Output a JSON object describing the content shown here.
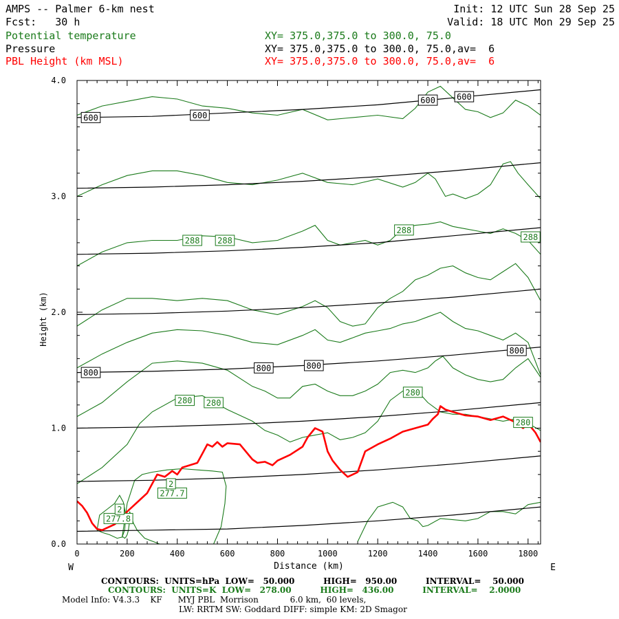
{
  "header": {
    "title": "AMPS -- Palmer 6-km nest",
    "fcst": "Fcst:   30 h",
    "init": "Init: 12 UTC Sun 28 Sep 25",
    "valid": "Valid: 18 UTC Mon 29 Sep 25",
    "var1_name": "Potential temperature",
    "var1_xy": "XY= 375.0,375.0 to 300.0, 75.0",
    "var2_name": "Pressure",
    "var2_xy": "XY= 375.0,375.0 to 300.0, 75.0,av=  6",
    "var3_name": "PBL Height (km MSL)",
    "var3_xy": "XY= 375.0,375.0 to 300.0, 75.0,av=  6"
  },
  "footer": {
    "line1": "CONTOURS:  UNITS=hPa  LOW=   50.000          HIGH=   950.00          INTERVAL=    50.000",
    "line2": "CONTOURS:  UNITS=K  LOW=   278.00          HIGH=   436.00          INTERVAL=    2.0000",
    "line3": "Model Info: V4.3.3    KF      MYJ PBL  Morrison            6.0 km,  60 levels,",
    "line4": "LW: RRTM SW: Goddard DIFF: simple KM: 2D Smagor"
  },
  "colors": {
    "theta": "#1a7a1a",
    "pressure": "#000000",
    "pbl": "#ff0000"
  },
  "chart_data": {
    "type": "line",
    "xlabel": "Distance (km)",
    "ylabel": "Height (km)",
    "xlim": [
      0,
      1850
    ],
    "ylim": [
      0,
      4.0
    ],
    "x_ticks": [
      0,
      200,
      400,
      600,
      800,
      1000,
      1200,
      1400,
      1600,
      1800
    ],
    "y_ticks": [
      0.0,
      1.0,
      2.0,
      3.0,
      4.0
    ],
    "y_tick_labels": [
      "0.0",
      "1.0",
      "2.0",
      "3.0",
      "4.0"
    ],
    "x_end_labels": [
      "W",
      "E"
    ],
    "pbl_height": {
      "x": [
        0,
        20,
        40,
        60,
        80,
        100,
        120,
        150,
        180,
        200,
        220,
        250,
        280,
        300,
        320,
        350,
        380,
        400,
        420,
        450,
        480,
        500,
        520,
        540,
        560,
        580,
        600,
        650,
        700,
        720,
        750,
        780,
        800,
        850,
        900,
        920,
        950,
        980,
        1000,
        1020,
        1050,
        1080,
        1100,
        1120,
        1150,
        1200,
        1250,
        1300,
        1350,
        1400,
        1420,
        1440,
        1450,
        1470,
        1500,
        1550,
        1600,
        1650,
        1700,
        1750,
        1780,
        1800,
        1830,
        1850
      ],
      "y": [
        0.37,
        0.33,
        0.27,
        0.18,
        0.13,
        0.12,
        0.14,
        0.17,
        0.22,
        0.28,
        0.32,
        0.38,
        0.44,
        0.52,
        0.6,
        0.58,
        0.63,
        0.6,
        0.66,
        0.68,
        0.7,
        0.78,
        0.86,
        0.84,
        0.88,
        0.84,
        0.87,
        0.86,
        0.73,
        0.7,
        0.71,
        0.68,
        0.72,
        0.77,
        0.84,
        0.92,
        1.0,
        0.97,
        0.8,
        0.72,
        0.64,
        0.58,
        0.6,
        0.62,
        0.8,
        0.86,
        0.91,
        0.97,
        1.0,
        1.03,
        1.08,
        1.12,
        1.19,
        1.16,
        1.14,
        1.11,
        1.1,
        1.07,
        1.1,
        1.05,
        1.0,
        1.04,
        0.96,
        0.88
      ]
    },
    "pressure_contours": [
      {
        "level": "600",
        "x": [
          0,
          300,
          600,
          900,
          1200,
          1500,
          1850
        ],
        "y": [
          3.68,
          3.69,
          3.72,
          3.75,
          3.79,
          3.85,
          3.92
        ]
      },
      {
        "level": "",
        "x": [
          0,
          300,
          600,
          900,
          1200,
          1500,
          1850
        ],
        "y": [
          3.07,
          3.08,
          3.1,
          3.13,
          3.17,
          3.22,
          3.29
        ]
      },
      {
        "level": "",
        "x": [
          0,
          300,
          600,
          900,
          1200,
          1500,
          1850
        ],
        "y": [
          2.5,
          2.51,
          2.53,
          2.56,
          2.6,
          2.66,
          2.73
        ]
      },
      {
        "level": "",
        "x": [
          0,
          300,
          600,
          900,
          1200,
          1500,
          1850
        ],
        "y": [
          1.98,
          1.99,
          2.01,
          2.04,
          2.08,
          2.13,
          2.2
        ]
      },
      {
        "level": "800",
        "x": [
          0,
          300,
          600,
          900,
          1200,
          1500,
          1850
        ],
        "y": [
          1.48,
          1.49,
          1.51,
          1.54,
          1.58,
          1.63,
          1.7
        ]
      },
      {
        "level": "",
        "x": [
          0,
          300,
          600,
          900,
          1200,
          1500,
          1850
        ],
        "y": [
          1.0,
          1.01,
          1.03,
          1.06,
          1.1,
          1.15,
          1.22
        ]
      },
      {
        "level": "",
        "x": [
          0,
          300,
          600,
          900,
          1200,
          1500,
          1850
        ],
        "y": [
          0.54,
          0.55,
          0.57,
          0.6,
          0.64,
          0.69,
          0.76
        ]
      },
      {
        "level": "",
        "x": [
          0,
          300,
          600,
          900,
          1200,
          1500,
          1850
        ],
        "y": [
          0.11,
          0.12,
          0.13,
          0.16,
          0.2,
          0.25,
          0.32
        ]
      }
    ],
    "pressure_labels": [
      {
        "text": "600",
        "x": 55,
        "y": 3.68
      },
      {
        "text": "600",
        "x": 490,
        "y": 3.7
      },
      {
        "text": "600",
        "x": 1400,
        "y": 3.83
      },
      {
        "text": "600",
        "x": 1545,
        "y": 3.86
      },
      {
        "text": "800",
        "x": 55,
        "y": 1.48
      },
      {
        "text": "800",
        "x": 745,
        "y": 1.52
      },
      {
        "text": "800",
        "x": 945,
        "y": 1.54
      },
      {
        "text": "800",
        "x": 1755,
        "y": 1.67
      }
    ],
    "theta_contours": [
      {
        "x": [
          0,
          100,
          200,
          300,
          400,
          500,
          600,
          700,
          800,
          900,
          1000,
          1100,
          1200,
          1300,
          1350,
          1400,
          1450,
          1500,
          1550,
          1600,
          1650,
          1700,
          1750,
          1800,
          1850
        ],
        "y": [
          3.7,
          3.78,
          3.82,
          3.86,
          3.84,
          3.78,
          3.76,
          3.72,
          3.7,
          3.75,
          3.66,
          3.68,
          3.7,
          3.67,
          3.76,
          3.9,
          3.95,
          3.85,
          3.75,
          3.73,
          3.68,
          3.72,
          3.83,
          3.78,
          3.7
        ]
      },
      {
        "x": [
          0,
          100,
          200,
          300,
          400,
          500,
          600,
          700,
          800,
          900,
          1000,
          1100,
          1200,
          1300,
          1350,
          1400,
          1430,
          1470,
          1500,
          1550,
          1600,
          1650,
          1700,
          1730,
          1760,
          1800,
          1850
        ],
        "y": [
          3.0,
          3.1,
          3.18,
          3.22,
          3.22,
          3.18,
          3.12,
          3.1,
          3.14,
          3.2,
          3.12,
          3.1,
          3.15,
          3.08,
          3.12,
          3.2,
          3.15,
          3.0,
          3.02,
          2.98,
          3.02,
          3.1,
          3.28,
          3.3,
          3.2,
          3.1,
          2.98
        ]
      },
      {
        "x": [
          0,
          100,
          200,
          300,
          400,
          500,
          600,
          700,
          800,
          900,
          950,
          1000,
          1050,
          1100,
          1150,
          1200,
          1250,
          1300,
          1350,
          1400,
          1450,
          1500,
          1550,
          1600,
          1650,
          1700,
          1750,
          1800,
          1850
        ],
        "y": [
          2.4,
          2.52,
          2.6,
          2.62,
          2.62,
          2.66,
          2.65,
          2.6,
          2.62,
          2.7,
          2.75,
          2.62,
          2.58,
          2.6,
          2.62,
          2.58,
          2.62,
          2.72,
          2.75,
          2.76,
          2.78,
          2.74,
          2.72,
          2.7,
          2.68,
          2.72,
          2.68,
          2.62,
          2.5
        ]
      },
      {
        "x": [
          0,
          100,
          200,
          300,
          400,
          500,
          600,
          700,
          800,
          900,
          950,
          1000,
          1050,
          1100,
          1150,
          1200,
          1250,
          1300,
          1350,
          1400,
          1450,
          1500,
          1550,
          1600,
          1650,
          1700,
          1750,
          1800,
          1850
        ],
        "y": [
          1.88,
          2.02,
          2.12,
          2.12,
          2.1,
          2.12,
          2.1,
          2.02,
          1.98,
          2.05,
          2.1,
          2.04,
          1.92,
          1.88,
          1.9,
          2.04,
          2.12,
          2.18,
          2.28,
          2.32,
          2.38,
          2.4,
          2.34,
          2.3,
          2.28,
          2.35,
          2.42,
          2.3,
          2.1
        ]
      },
      {
        "x": [
          0,
          100,
          200,
          300,
          400,
          500,
          600,
          700,
          800,
          900,
          950,
          1000,
          1050,
          1100,
          1150,
          1200,
          1250,
          1300,
          1350,
          1400,
          1450,
          1500,
          1550,
          1600,
          1650,
          1700,
          1750,
          1800,
          1850
        ],
        "y": [
          1.52,
          1.64,
          1.74,
          1.82,
          1.85,
          1.84,
          1.8,
          1.74,
          1.72,
          1.8,
          1.85,
          1.76,
          1.74,
          1.78,
          1.82,
          1.84,
          1.86,
          1.9,
          1.92,
          1.96,
          2.0,
          1.92,
          1.86,
          1.84,
          1.8,
          1.76,
          1.82,
          1.74,
          1.46
        ]
      },
      {
        "x": [
          0,
          100,
          200,
          300,
          400,
          500,
          600,
          700,
          750,
          800,
          850,
          900,
          950,
          1000,
          1050,
          1100,
          1150,
          1200,
          1250,
          1300,
          1350,
          1400,
          1430,
          1460,
          1500,
          1550,
          1600,
          1650,
          1700,
          1750,
          1800,
          1850
        ],
        "y": [
          1.1,
          1.22,
          1.4,
          1.56,
          1.58,
          1.56,
          1.5,
          1.36,
          1.32,
          1.26,
          1.26,
          1.36,
          1.38,
          1.32,
          1.28,
          1.28,
          1.32,
          1.38,
          1.48,
          1.5,
          1.48,
          1.52,
          1.58,
          1.62,
          1.52,
          1.46,
          1.42,
          1.4,
          1.42,
          1.52,
          1.6,
          1.44
        ]
      },
      {
        "x": [
          0,
          100,
          200,
          250,
          300,
          400,
          500,
          550,
          600,
          700,
          750,
          800,
          850,
          900,
          950,
          1000,
          1050,
          1100,
          1150,
          1200,
          1250,
          1300,
          1350,
          1400,
          1450,
          1500,
          1550,
          1600,
          1650,
          1700,
          1750,
          1800,
          1850
        ],
        "y": [
          0.52,
          0.66,
          0.86,
          1.04,
          1.14,
          1.26,
          1.28,
          1.22,
          1.16,
          1.06,
          0.98,
          0.94,
          0.88,
          0.92,
          0.94,
          0.96,
          0.9,
          0.92,
          0.96,
          1.06,
          1.24,
          1.32,
          1.34,
          1.22,
          1.14,
          1.12,
          1.12,
          1.1,
          1.08,
          1.06,
          1.08,
          1.04,
          0.98
        ]
      },
      {
        "x": [
          1120,
          1160,
          1200,
          1260,
          1300,
          1330,
          1360,
          1380,
          1400,
          1450,
          1500,
          1550,
          1600,
          1650,
          1700,
          1750,
          1800,
          1850
        ],
        "y": [
          0.02,
          0.2,
          0.32,
          0.36,
          0.32,
          0.22,
          0.2,
          0.15,
          0.16,
          0.22,
          0.21,
          0.2,
          0.22,
          0.28,
          0.28,
          0.26,
          0.34,
          0.36
        ]
      },
      {
        "x": [
          180,
          200,
          230,
          260,
          300,
          360,
          420,
          480,
          540,
          580,
          595,
          590,
          575,
          545,
          330,
          270,
          240,
          225,
          215,
          210,
          210,
          205,
          200,
          195,
          190,
          185,
          180
        ],
        "y": [
          0.06,
          0.35,
          0.55,
          0.6,
          0.62,
          0.64,
          0.65,
          0.64,
          0.63,
          0.62,
          0.5,
          0.35,
          0.15,
          0.0,
          0.0,
          0.05,
          0.12,
          0.18,
          0.25,
          0.28,
          0.2,
          0.12,
          0.08,
          0.06,
          0.05,
          0.06,
          0.06
        ]
      },
      {
        "x": [
          80,
          90,
          120,
          150,
          170,
          185,
          195,
          190,
          180,
          160,
          130,
          100,
          80
        ],
        "y": [
          0.12,
          0.25,
          0.3,
          0.35,
          0.42,
          0.36,
          0.24,
          0.12,
          0.06,
          0.05,
          0.08,
          0.1,
          0.12
        ]
      }
    ],
    "theta_labels": [
      {
        "text": "288",
        "x": 460,
        "y": 2.62
      },
      {
        "text": "288",
        "x": 590,
        "y": 2.62
      },
      {
        "text": "288",
        "x": 1305,
        "y": 2.71
      },
      {
        "text": "288",
        "x": 1810,
        "y": 2.65
      },
      {
        "text": "280",
        "x": 430,
        "y": 1.24
      },
      {
        "text": "280",
        "x": 545,
        "y": 1.22
      },
      {
        "text": "280",
        "x": 1340,
        "y": 1.31
      },
      {
        "text": "280",
        "x": 1780,
        "y": 1.05
      },
      {
        "text": "277.7",
        "x": 380,
        "y": 0.44
      },
      {
        "text": "277.8",
        "x": 165,
        "y": 0.22
      },
      {
        "text": "2",
        "x": 375,
        "y": 0.52
      },
      {
        "text": "2",
        "x": 170,
        "y": 0.3
      }
    ]
  }
}
